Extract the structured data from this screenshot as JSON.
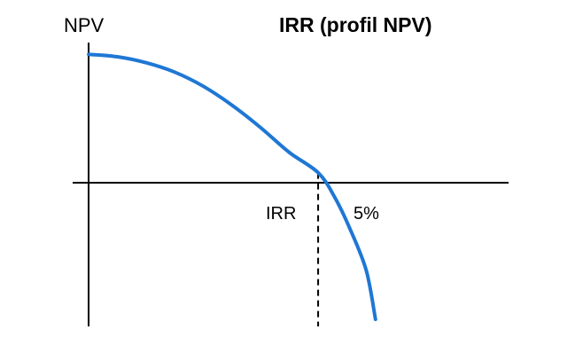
{
  "chart_data": {
    "type": "line",
    "title": "IRR (profil NPV)",
    "ylabel": "NPV",
    "xlabel": "",
    "annotations": {
      "irr_marker": "IRR",
      "rate_label": "5%"
    },
    "series": [
      {
        "color": "#1f77d4",
        "points": [
          {
            "x": 0.0,
            "y": 1.0
          },
          {
            "x": 0.125,
            "y": 0.98
          },
          {
            "x": 0.25,
            "y": 0.93
          },
          {
            "x": 0.375,
            "y": 0.85
          },
          {
            "x": 0.5,
            "y": 0.73
          },
          {
            "x": 0.625,
            "y": 0.57
          },
          {
            "x": 0.75,
            "y": 0.38
          },
          {
            "x": 0.875,
            "y": 0.17
          },
          {
            "x": 1.0,
            "y": 0.0
          },
          {
            "x": 1.07,
            "y": -0.2
          },
          {
            "x": 1.14,
            "y": -0.48
          },
          {
            "x": 1.21,
            "y": -0.83
          },
          {
            "x": 1.25,
            "y": -1.24
          }
        ]
      }
    ],
    "irr_x": 1.0,
    "xlim": [
      -0.07,
      1.83
    ],
    "ylim": [
      -1.3,
      1.1
    ],
    "grid": false,
    "axis_color": "#000000"
  }
}
